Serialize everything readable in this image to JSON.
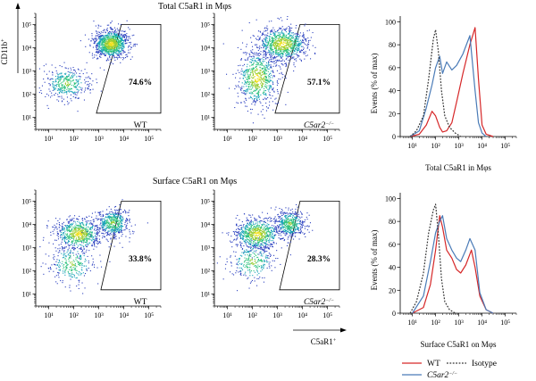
{
  "figure": {
    "row_titles": [
      "Total C5aR1 in Mφs",
      "Surface C5aR1 on Mφs"
    ],
    "y_label": "CD11b",
    "y_label_sup": "+",
    "x_label": "C5aR1",
    "x_label_sup": "+",
    "hist_y_label": "Events (% of max)",
    "hist_x_labels": [
      "Total C5aR1 in Mφs",
      "Surface C5aR1 on Mφs"
    ]
  },
  "chart_data": [
    {
      "type": "scatter",
      "title": "Total C5aR1 in Mφs",
      "genotype": "WT",
      "gate_percent": "74.6%",
      "x_scale": "log",
      "y_scale": "log",
      "xlim": [
        3,
        300000
      ],
      "ylim": [
        3,
        300000
      ],
      "x_ticks": [
        "10¹",
        "10²",
        "10³",
        "10⁴",
        "10⁵"
      ],
      "y_ticks": [
        "10¹",
        "10²",
        "10³",
        "10⁴",
        "10⁵"
      ],
      "clusters": [
        {
          "x": 50,
          "y": 300,
          "sx": 0.45,
          "sy": 0.35,
          "n": 380
        },
        {
          "x": 3000,
          "y": 15000,
          "sx": 0.35,
          "sy": 0.3,
          "n": 1100
        }
      ],
      "gate": [
        [
          800,
          15
        ],
        [
          300000,
          15
        ],
        [
          300000,
          100000
        ],
        [
          8000,
          100000
        ]
      ]
    },
    {
      "type": "scatter",
      "title": "Total C5aR1 in Mφs",
      "genotype": "C5ar2",
      "genotype_sup": "−/−",
      "gate_percent": "57.1%",
      "x_scale": "log",
      "y_scale": "log",
      "xlim": [
        3,
        300000
      ],
      "ylim": [
        3,
        300000
      ],
      "x_ticks": [
        "10¹",
        "10²",
        "10³",
        "10⁴",
        "10⁵"
      ],
      "y_ticks": [
        "10¹",
        "10²",
        "10³",
        "10⁴",
        "10⁵"
      ],
      "clusters": [
        {
          "x": 150,
          "y": 500,
          "sx": 0.4,
          "sy": 0.6,
          "n": 700
        },
        {
          "x": 1500,
          "y": 15000,
          "sx": 0.5,
          "sy": 0.35,
          "n": 900
        }
      ],
      "gate": [
        [
          800,
          15
        ],
        [
          300000,
          15
        ],
        [
          300000,
          100000
        ],
        [
          8000,
          100000
        ]
      ]
    },
    {
      "type": "line",
      "title": "Total C5aR1 in Mφs",
      "xlabel": "Total C5aR1 in Mφs",
      "ylabel": "Events (% of max)",
      "x_scale": "log",
      "xlim": [
        3,
        300000
      ],
      "ylim": [
        0,
        105
      ],
      "x_ticks": [
        "10¹",
        "10²",
        "10³",
        "10⁴",
        "10⁵"
      ],
      "y_ticks": [
        0,
        20,
        40,
        60,
        80,
        100
      ],
      "series": [
        {
          "name": "WT",
          "color": "#d62728",
          "x": [
            8,
            20,
            40,
            70,
            100,
            150,
            200,
            300,
            500,
            800,
            1500,
            3000,
            5000,
            7000,
            10000,
            15000,
            30000
          ],
          "y": [
            0,
            2,
            10,
            22,
            18,
            8,
            4,
            5,
            12,
            30,
            55,
            80,
            95,
            50,
            10,
            2,
            0
          ]
        },
        {
          "name": "C5ar2",
          "name_sup": "−/−",
          "color": "#4a7bb7",
          "x": [
            8,
            20,
            40,
            70,
            100,
            150,
            200,
            300,
            500,
            800,
            1500,
            3000,
            5000,
            7000,
            10000,
            15000
          ],
          "y": [
            0,
            5,
            25,
            45,
            60,
            70,
            55,
            65,
            58,
            62,
            72,
            88,
            40,
            12,
            3,
            0
          ]
        },
        {
          "name": "Isotype",
          "color": "#333333",
          "dashed": true,
          "x": [
            8,
            15,
            30,
            50,
            80,
            100,
            130,
            180,
            250,
            400,
            700,
            1200
          ],
          "y": [
            0,
            5,
            18,
            50,
            85,
            93,
            75,
            40,
            18,
            8,
            3,
            0
          ]
        }
      ]
    },
    {
      "type": "scatter",
      "title": "Surface C5aR1 on Mφs",
      "genotype": "WT",
      "gate_percent": "33.8%",
      "x_scale": "log",
      "y_scale": "log",
      "xlim": [
        3,
        300000
      ],
      "ylim": [
        3,
        300000
      ],
      "x_ticks": [
        "10¹",
        "10²",
        "10³",
        "10⁴",
        "10⁵"
      ],
      "y_ticks": [
        "10¹",
        "10²",
        "10³",
        "10⁴",
        "10⁵"
      ],
      "clusters": [
        {
          "x": 150,
          "y": 4000,
          "sx": 0.45,
          "sy": 0.35,
          "n": 700
        },
        {
          "x": 3500,
          "y": 12000,
          "sx": 0.35,
          "sy": 0.3,
          "n": 500
        },
        {
          "x": 80,
          "y": 200,
          "sx": 0.45,
          "sy": 0.45,
          "n": 280
        }
      ],
      "gate": [
        [
          1200,
          15
        ],
        [
          300000,
          15
        ],
        [
          300000,
          100000
        ],
        [
          8000,
          100000
        ]
      ]
    },
    {
      "type": "scatter",
      "title": "Surface C5aR1 on Mφs",
      "genotype": "C5ar2",
      "genotype_sup": "−/−",
      "gate_percent": "28.3%",
      "x_scale": "log",
      "y_scale": "log",
      "xlim": [
        3,
        300000
      ],
      "ylim": [
        3,
        300000
      ],
      "x_ticks": [
        "10¹",
        "10²",
        "10³",
        "10⁴",
        "10⁵"
      ],
      "y_ticks": [
        "10¹",
        "10²",
        "10³",
        "10⁴",
        "10⁵"
      ],
      "clusters": [
        {
          "x": 150,
          "y": 4000,
          "sx": 0.45,
          "sy": 0.35,
          "n": 750
        },
        {
          "x": 3000,
          "y": 11000,
          "sx": 0.3,
          "sy": 0.3,
          "n": 450
        },
        {
          "x": 100,
          "y": 250,
          "sx": 0.45,
          "sy": 0.45,
          "n": 280
        }
      ],
      "gate": [
        [
          1200,
          15
        ],
        [
          300000,
          15
        ],
        [
          300000,
          100000
        ],
        [
          8000,
          100000
        ]
      ]
    },
    {
      "type": "line",
      "title": "Surface C5aR1 on Mφs",
      "xlabel": "Surface C5aR1 on Mφs",
      "ylabel": "Events (% of max)",
      "x_scale": "log",
      "xlim": [
        3,
        300000
      ],
      "ylim": [
        0,
        105
      ],
      "x_ticks": [
        "10¹",
        "10²",
        "10³",
        "10⁴",
        "10⁵"
      ],
      "y_ticks": [
        0,
        20,
        40,
        60,
        80,
        100
      ],
      "series": [
        {
          "name": "WT",
          "color": "#d62728",
          "x": [
            10,
            30,
            60,
            100,
            150,
            200,
            300,
            500,
            800,
            1200,
            2000,
            3500,
            5000,
            8000,
            15000,
            30000
          ],
          "y": [
            0,
            5,
            25,
            55,
            85,
            75,
            55,
            48,
            38,
            35,
            42,
            55,
            40,
            15,
            3,
            0
          ]
        },
        {
          "name": "C5ar2",
          "name_sup": "−/−",
          "color": "#4a7bb7",
          "x": [
            10,
            30,
            60,
            100,
            150,
            200,
            300,
            500,
            800,
            1200,
            2000,
            3000,
            5000,
            8000,
            15000,
            30000
          ],
          "y": [
            0,
            15,
            45,
            70,
            80,
            85,
            65,
            55,
            48,
            45,
            55,
            65,
            55,
            18,
            3,
            0
          ]
        },
        {
          "name": "Isotype",
          "color": "#333333",
          "dashed": true,
          "x": [
            8,
            15,
            30,
            50,
            80,
            100,
            130,
            180,
            250,
            400,
            700
          ],
          "y": [
            0,
            10,
            35,
            70,
            90,
            95,
            70,
            30,
            10,
            3,
            0
          ]
        }
      ]
    }
  ],
  "legend": {
    "items": [
      {
        "label": "WT",
        "color": "#d62728",
        "dashed": false
      },
      {
        "label": "Isotype",
        "color": "#333333",
        "dashed": true
      },
      {
        "label": "C5ar2",
        "label_sup": "−/−",
        "color": "#4a7bb7",
        "dashed": false
      }
    ]
  }
}
